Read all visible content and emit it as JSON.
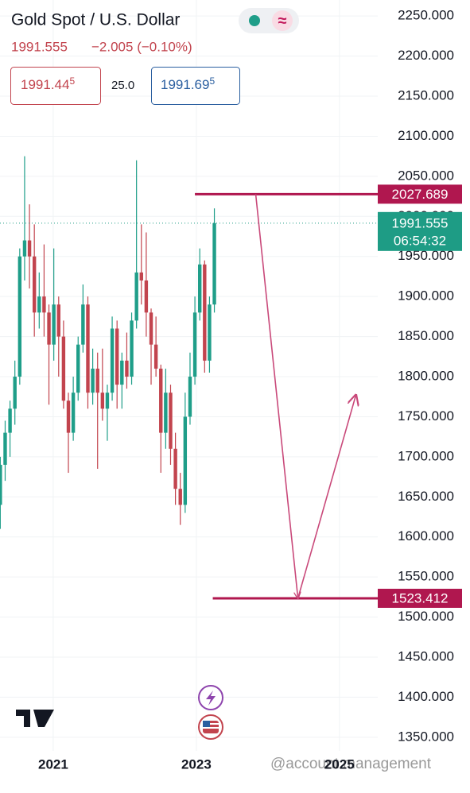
{
  "header": {
    "title": "Gold Spot / U.S. Dollar",
    "price": "1991.555",
    "change": "−2.005 (−0.10%)",
    "sell": {
      "main": "1991.44",
      "pip": "5"
    },
    "spread": "25.0",
    "buy": {
      "main": "1991.69",
      "pip": "5"
    }
  },
  "chart_data": {
    "type": "candlestick",
    "x": [
      2020.26,
      2020.328,
      2020.396,
      2020.464,
      2020.532,
      2020.6,
      2020.668,
      2020.736,
      2020.804,
      2020.872,
      2020.94,
      2021.008,
      2021.076,
      2021.144,
      2021.212,
      2021.28,
      2021.348,
      2021.416,
      2021.484,
      2021.552,
      2021.62,
      2021.688,
      2021.756,
      2021.824,
      2021.892,
      2021.96,
      2022.028,
      2022.096,
      2022.164,
      2022.232,
      2022.3,
      2022.368,
      2022.436,
      2022.504,
      2022.572,
      2022.64,
      2022.708,
      2022.776,
      2022.844,
      2022.912,
      2022.98,
      2023.048,
      2023.116,
      2023.184,
      2023.252
    ],
    "open": [
      1640,
      1690,
      1730,
      1760,
      1800,
      1950,
      1970,
      1950,
      1880,
      1900,
      1880,
      1840,
      1890,
      1850,
      1770,
      1730,
      1780,
      1840,
      1890,
      1780,
      1810,
      1780,
      1760,
      1780,
      1860,
      1790,
      1820,
      1800,
      1870,
      1930,
      1920,
      1880,
      1840,
      1810,
      1730,
      1780,
      1710,
      1660,
      1640,
      1750,
      1800,
      1880,
      1940,
      1820,
      1890
    ],
    "high": [
      1700,
      1745,
      1770,
      1820,
      1960,
      2075,
      2015,
      1990,
      1930,
      1965,
      1890,
      1960,
      1900,
      1870,
      1780,
      1800,
      1850,
      1915,
      1900,
      1835,
      1830,
      1835,
      1790,
      1875,
      1870,
      1830,
      1855,
      1880,
      2070,
      1990,
      1980,
      1885,
      1875,
      1815,
      1810,
      1790,
      1730,
      1680,
      1780,
      1830,
      1900,
      1960,
      1945,
      1900,
      2010
    ],
    "low": [
      1610,
      1670,
      1700,
      1740,
      1790,
      1920,
      1910,
      1850,
      1860,
      1850,
      1765,
      1820,
      1800,
      1760,
      1680,
      1720,
      1770,
      1830,
      1760,
      1765,
      1685,
      1745,
      1720,
      1770,
      1760,
      1760,
      1785,
      1790,
      1860,
      1890,
      1850,
      1790,
      1800,
      1680,
      1710,
      1690,
      1640,
      1615,
      1630,
      1740,
      1790,
      1870,
      1805,
      1805,
      1880
    ],
    "close": [
      1690,
      1730,
      1760,
      1800,
      1950,
      1970,
      1950,
      1880,
      1900,
      1880,
      1840,
      1890,
      1850,
      1770,
      1730,
      1780,
      1840,
      1890,
      1780,
      1810,
      1780,
      1760,
      1780,
      1860,
      1790,
      1820,
      1800,
      1870,
      1930,
      1920,
      1880,
      1840,
      1810,
      1730,
      1780,
      1710,
      1660,
      1640,
      1750,
      1800,
      1880,
      1940,
      1820,
      1890,
      1991.555
    ],
    "up_color": "#1f9e89",
    "down_color": "#c2444e",
    "xlim": [
      2020.256,
      2025.48
    ],
    "xticks": [
      2021,
      2023,
      2025
    ],
    "ylim": [
      1333,
      2270
    ],
    "yticks": [
      {
        "value": 1350,
        "label": "1350.000"
      },
      {
        "value": 1400,
        "label": "1400.000"
      },
      {
        "value": 1450,
        "label": "1450.000"
      },
      {
        "value": 1500,
        "label": "1500.000"
      },
      {
        "value": 1550,
        "label": "1550.000"
      },
      {
        "value": 1600,
        "label": "1600.000"
      },
      {
        "value": 1650,
        "label": "1650.000"
      },
      {
        "value": 1700,
        "label": "1700.000"
      },
      {
        "value": 1750,
        "label": "1750.000"
      },
      {
        "value": 1800,
        "label": "1800.000"
      },
      {
        "value": 1850,
        "label": "1850.000"
      },
      {
        "value": 1900,
        "label": "1900.000"
      },
      {
        "value": 1950,
        "label": "1950.000"
      },
      {
        "value": 2000,
        "label": "2000.000"
      },
      {
        "value": 2050,
        "label": "2050.000"
      },
      {
        "value": 2100,
        "label": "2100.000"
      },
      {
        "value": 2150,
        "label": "2150.000"
      },
      {
        "value": 2200,
        "label": "2200.000"
      },
      {
        "value": 2250,
        "label": "2250.000"
      }
    ],
    "grid": true,
    "price_line": {
      "value": 1991.555,
      "countdown": "06:54:32",
      "color": "#1e9c85"
    },
    "levels": [
      {
        "value": 2027.689,
        "x_start": 2022.98,
        "color": "#b0174f"
      },
      {
        "value": 1523.412,
        "x_start": 2023.23,
        "color": "#b0174f"
      }
    ],
    "arrow": {
      "x": [
        2023.83,
        2024.42,
        2025.23
      ],
      "y": [
        2027.689,
        1523.412,
        1777
      ],
      "color": "#c9497a"
    }
  },
  "watermark": "@account management"
}
